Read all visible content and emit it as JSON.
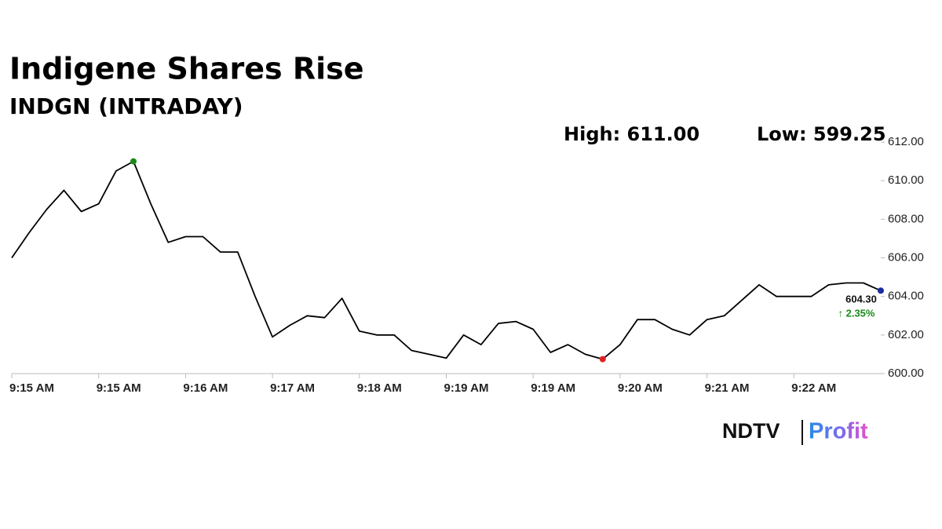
{
  "chart_data": {
    "type": "line",
    "title": "Indigene Shares Rise",
    "subtitle": "INDGN (INTRADAY)",
    "high_label": "High: 611.00",
    "low_label": "Low: 599.25",
    "last_label": "604.30",
    "change_label": "↑ 2.35%",
    "categories": [
      "9:15 AM",
      null,
      null,
      null,
      null,
      "9:15 AM",
      null,
      null,
      null,
      null,
      "9:16 AM",
      null,
      null,
      null,
      null,
      "9:17 AM",
      null,
      null,
      null,
      null,
      "9:18 AM",
      null,
      null,
      null,
      null,
      "9:19 AM",
      null,
      null,
      null,
      null,
      "9:19 AM",
      null,
      null,
      null,
      null,
      "9:20 AM",
      null,
      null,
      null,
      null,
      "9:21 AM",
      null,
      null,
      null,
      null,
      "9:22 AM",
      null,
      null,
      null,
      null,
      null
    ],
    "series": [
      {
        "color": "#000000",
        "values": [
          606.0,
          607.3,
          608.5,
          609.5,
          608.4,
          608.8,
          610.5,
          611.0,
          608.8,
          606.8,
          607.1,
          607.1,
          606.3,
          606.3,
          604.0,
          601.9,
          602.5,
          603.0,
          602.9,
          603.9,
          602.2,
          602.0,
          602.0,
          601.2,
          601.0,
          600.8,
          602.0,
          601.5,
          602.6,
          602.7,
          602.3,
          601.1,
          601.5,
          601.0,
          600.75,
          601.5,
          602.8,
          602.8,
          602.3,
          602.0,
          602.8,
          603.0,
          603.8,
          604.6,
          604.0,
          604.0,
          604.0,
          604.6,
          604.7,
          604.7,
          604.3
        ]
      }
    ],
    "markers": [
      {
        "index": 7,
        "color": "#1a8a1a"
      },
      {
        "index": 34,
        "color": "#e02020"
      },
      {
        "index": 50,
        "color": "#1a2aa0"
      }
    ],
    "ylim": [
      600,
      612
    ],
    "yticks": [
      {
        "value": 600,
        "label": "600.00"
      },
      {
        "value": 602,
        "label": "602.00"
      },
      {
        "value": 604,
        "label": "604.00"
      },
      {
        "value": 606,
        "label": "606.00"
      },
      {
        "value": 608,
        "label": "608.00"
      },
      {
        "value": 610,
        "label": "610.00"
      },
      {
        "value": 612,
        "label": "612.00"
      }
    ],
    "grid": false
  },
  "logo": {
    "brand": "NDTV",
    "sub": "Profit"
  }
}
